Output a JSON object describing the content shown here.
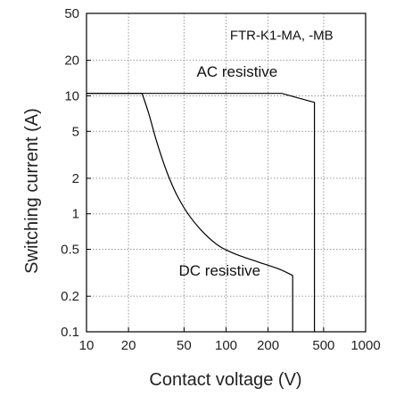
{
  "chart_data": {
    "type": "line",
    "title": "",
    "xlabel": "Contact voltage (V)",
    "ylabel": "Switching current (A)",
    "xscale": "log",
    "yscale": "log",
    "xlim": [
      10,
      1000
    ],
    "ylim": [
      0.1,
      50
    ],
    "grid": true,
    "x_ticks": [
      10,
      20,
      50,
      100,
      200,
      500,
      1000
    ],
    "x_tick_labels": [
      "10",
      "20",
      "50",
      "100",
      "200",
      "500",
      "1000"
    ],
    "y_ticks": [
      0.1,
      0.2,
      0.5,
      1,
      2,
      5,
      10,
      20,
      50
    ],
    "y_tick_labels": [
      "0.1",
      "0.2",
      "0.5",
      "1",
      "2",
      "5",
      "10",
      "20",
      "50"
    ],
    "annotations": [
      {
        "text": "FTR-K1-MA, -MB",
        "x": 250,
        "y": 30,
        "anchor": "middle"
      },
      {
        "text": "AC resistive",
        "x": 120,
        "y": 14.5,
        "anchor": "middle"
      },
      {
        "text": "DC resistive",
        "x": 90,
        "y": 0.3,
        "anchor": "middle"
      }
    ],
    "series": [
      {
        "name": "AC resistive",
        "points": [
          [
            10,
            10.5
          ],
          [
            250,
            10.5
          ],
          [
            430,
            8.8
          ],
          [
            430,
            0.1
          ]
        ]
      },
      {
        "name": "DC resistive",
        "points": [
          [
            10,
            10.5
          ],
          [
            25,
            10.5
          ],
          [
            28,
            7
          ],
          [
            32,
            4
          ],
          [
            38,
            2.2
          ],
          [
            45,
            1.4
          ],
          [
            55,
            0.95
          ],
          [
            70,
            0.68
          ],
          [
            90,
            0.53
          ],
          [
            120,
            0.45
          ],
          [
            170,
            0.39
          ],
          [
            240,
            0.34
          ],
          [
            300,
            0.3
          ],
          [
            300,
            0.1
          ]
        ]
      }
    ]
  }
}
